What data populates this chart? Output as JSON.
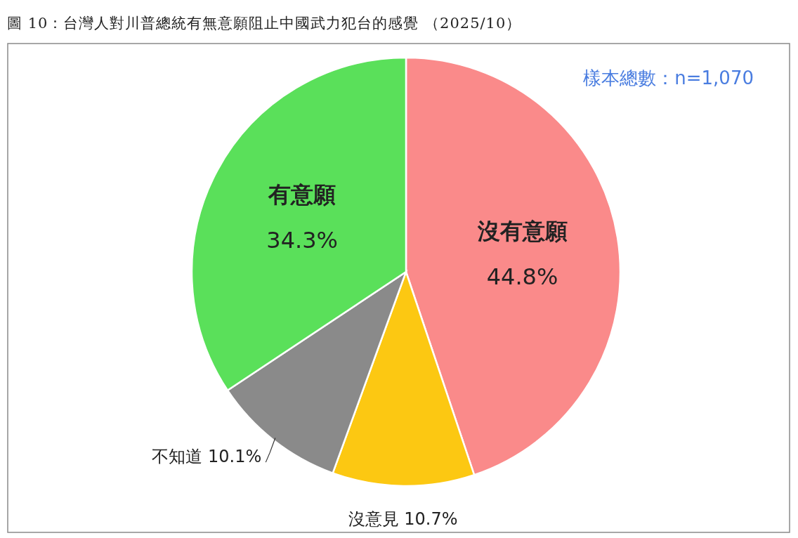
{
  "chart_data": {
    "type": "pie",
    "title": "圖 10：台灣人對川普總統有無意願阻止中國武力犯台的感覺 （2025/10）",
    "categories": [
      "沒有意願",
      "沒意見",
      "不知道",
      "有意願"
    ],
    "values": [
      44.8,
      10.7,
      10.1,
      34.3
    ],
    "value_labels": [
      "44.8%",
      "10.7%",
      "10.1%",
      "34.3%"
    ],
    "colors": [
      "#fa8a8a",
      "#fcc812",
      "#8a8a8a",
      "#5ae05a"
    ],
    "annotations": [
      "樣本總數：n=1,070"
    ],
    "legend": false
  }
}
